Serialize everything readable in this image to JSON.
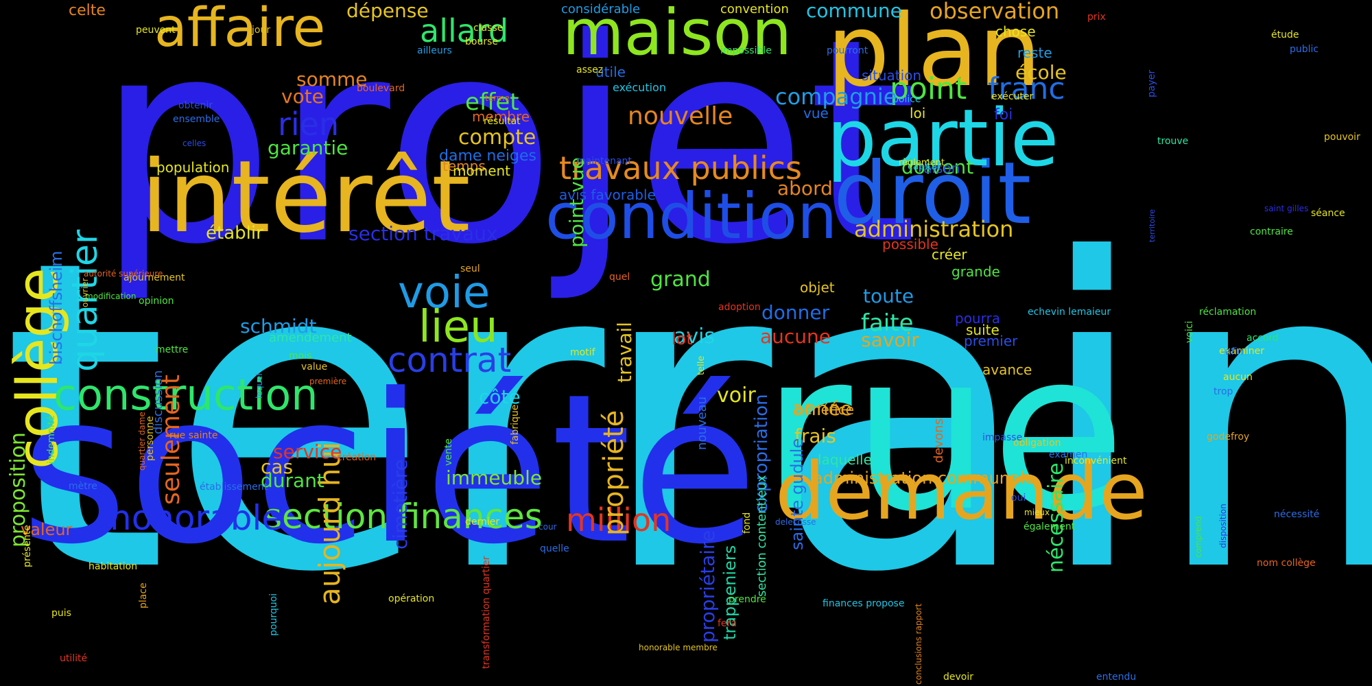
{
  "words": [
    {
      "text": "terrain",
      "color": "#1ec8e6"
    },
    {
      "text": "projet",
      "color": "#2a1fe6"
    },
    {
      "text": "société",
      "color": "#2230ec"
    },
    {
      "text": "rue",
      "color": "#1ee3d6"
    },
    {
      "text": "plan",
      "color": "#e6b51f"
    },
    {
      "text": "intérêt",
      "color": "#e6b51f"
    },
    {
      "text": "droit",
      "color": "#1f5ee6"
    },
    {
      "text": "partie",
      "color": "#1ed7e6"
    },
    {
      "text": "demande",
      "color": "#e6a51f"
    },
    {
      "text": "maison",
      "color": "#8ee61f"
    },
    {
      "text": "condition",
      "color": "#1f4ee6"
    },
    {
      "text": "collège",
      "color": "#e6e61f"
    },
    {
      "text": "affaire",
      "color": "#e6b51f"
    },
    {
      "text": "construction",
      "color": "#2ee66b"
    },
    {
      "text": "section finances",
      "color": "#5ee63f"
    },
    {
      "text": "honorable",
      "color": "#2230ec"
    },
    {
      "text": "travaux publics",
      "color": "#e68a1f"
    },
    {
      "text": "voie",
      "color": "#1f9be6"
    },
    {
      "text": "lieu",
      "color": "#8ee61f"
    },
    {
      "text": "contrat",
      "color": "#2a3ee6"
    },
    {
      "text": "quartier",
      "color": "#1fd6e6"
    },
    {
      "text": "aujourd hui",
      "color": "#e6b51f"
    },
    {
      "text": "million",
      "color": "#e6351f"
    },
    {
      "text": "allard",
      "color": "#2ee66b"
    },
    {
      "text": "point",
      "color": "#4ee63f"
    },
    {
      "text": "franc",
      "color": "#1f6ee6"
    },
    {
      "text": "compagnie",
      "color": "#1f9ee6"
    },
    {
      "text": "observation",
      "color": "#e6a51f"
    },
    {
      "text": "administration",
      "color": "#e6c51f"
    },
    {
      "text": "nouvelle",
      "color": "#e6851f"
    },
    {
      "text": "rien",
      "color": "#2a2ee6"
    },
    {
      "text": "effet",
      "color": "#4ee63f"
    },
    {
      "text": "compte",
      "color": "#e6c51f"
    },
    {
      "text": "propriété",
      "color": "#e6b51f"
    },
    {
      "text": "seulement",
      "color": "#e6651f"
    },
    {
      "text": "proposition",
      "color": "#7ee62f"
    },
    {
      "text": "nécessaire",
      "color": "#2ee66b"
    },
    {
      "text": "propriétaire",
      "color": "#2a3ee6"
    },
    {
      "text": "immeuble",
      "color": "#7ee62f"
    },
    {
      "text": "frais",
      "color": "#e6c51f"
    },
    {
      "text": "faite",
      "color": "#2ee6a5"
    },
    {
      "text": "grand",
      "color": "#4ee63f"
    },
    {
      "text": "avis",
      "color": "#1fd6e6"
    },
    {
      "text": "voir",
      "color": "#e6e61f"
    },
    {
      "text": "année",
      "color": "#e6a51f"
    },
    {
      "text": "cimetière",
      "color": "#2a3ee6"
    },
    {
      "text": "garantie",
      "color": "#4ee63f"
    },
    {
      "text": "somme",
      "color": "#e6851f"
    },
    {
      "text": "vote",
      "color": "#e6751f"
    },
    {
      "text": "école",
      "color": "#e6c51f"
    },
    {
      "text": "commune",
      "color": "#1fc6e6"
    },
    {
      "text": "dépense",
      "color": "#e6c51f"
    },
    {
      "text": "point vue",
      "color": "#4ee63f"
    },
    {
      "text": "toute",
      "color": "#1f9be6"
    },
    {
      "text": "savoir",
      "color": "#e6a51f"
    },
    {
      "text": "donner",
      "color": "#1f6ee6"
    },
    {
      "text": "aucune",
      "color": "#e6351f"
    },
    {
      "text": "service",
      "color": "#e6351f"
    },
    {
      "text": "durant",
      "color": "#4ee63f"
    },
    {
      "text": "cas",
      "color": "#e6c51f"
    },
    {
      "text": "côté",
      "color": "#1fd6e6"
    },
    {
      "text": "schmidt",
      "color": "#1f9ee6"
    },
    {
      "text": "abord",
      "color": "#e6851f"
    },
    {
      "text": "doivent",
      "color": "#4ee63f"
    },
    {
      "text": "travail",
      "color": "#e6c51f"
    },
    {
      "text": "expropriation",
      "color": "#2a6ee6"
    },
    {
      "text": "sainte gudule",
      "color": "#2a6ee6"
    },
    {
      "text": "trappeniers",
      "color": "#1fd6a6"
    },
    {
      "text": "bischoffsheim",
      "color": "#2a6ee6"
    },
    {
      "text": "dame neiges",
      "color": "#1f6ee6"
    },
    {
      "text": "section travaux",
      "color": "#2a2ee6"
    },
    {
      "text": "administration communale",
      "color": "#e6a51f"
    },
    {
      "text": "établir",
      "color": "#e6e61f"
    },
    {
      "text": "population",
      "color": "#e6e61f"
    },
    {
      "text": "temps",
      "color": "#e6851f"
    },
    {
      "text": "moment",
      "color": "#e6e61f"
    },
    {
      "text": "avis favorable",
      "color": "#1f5ee6"
    },
    {
      "text": "utile",
      "color": "#1f6ee6"
    },
    {
      "text": "lot",
      "color": "#e6351f"
    },
    {
      "text": "membre",
      "color": "#e6651f"
    },
    {
      "text": "chose",
      "color": "#e6e61f"
    },
    {
      "text": "considérable",
      "color": "#1f9ee6"
    },
    {
      "text": "celte",
      "color": "#e6851f"
    },
    {
      "text": "convention",
      "color": "#e6e61f"
    },
    {
      "text": "exécution",
      "color": "#1fc6e6"
    },
    {
      "text": "situation",
      "color": "#2a4ee6"
    },
    {
      "text": "loi",
      "color": "#e6e61f"
    },
    {
      "text": "vue",
      "color": "#1f6ee6"
    },
    {
      "text": "foi",
      "color": "#2a2ee6"
    },
    {
      "text": "raison",
      "color": "#2a4ee6"
    },
    {
      "text": "reste",
      "color": "#1f9ee6"
    },
    {
      "text": "amendement",
      "color": "#2ee6a5"
    },
    {
      "text": "objet",
      "color": "#e6c51f"
    },
    {
      "text": "pourra",
      "color": "#2a2ee6"
    },
    {
      "text": "suite",
      "color": "#e6e61f"
    },
    {
      "text": "premier",
      "color": "#2a4ee6"
    },
    {
      "text": "avance",
      "color": "#e6c51f"
    },
    {
      "text": "créer",
      "color": "#e6e61f"
    },
    {
      "text": "grande",
      "color": "#4ee63f"
    },
    {
      "text": "laquelle",
      "color": "#2ee6a5"
    },
    {
      "text": "bénéfice",
      "color": "#e6a51f"
    },
    {
      "text": "possible",
      "color": "#e6351f"
    },
    {
      "text": "valeur",
      "color": "#e6651f"
    },
    {
      "text": "nouveau",
      "color": "#2a6ee6"
    },
    {
      "text": "discussion",
      "color": "#2a6ee6"
    },
    {
      "text": "section contentieux",
      "color": "#2ee6a5"
    },
    {
      "text": "devons",
      "color": "#e6651f"
    },
    {
      "text": "jour",
      "color": "#e6c51f"
    },
    {
      "text": "peuvent",
      "color": "#e6e61f"
    },
    {
      "text": "classe",
      "color": "#e6e61f"
    },
    {
      "text": "bourse",
      "color": "#e6e61f"
    },
    {
      "text": "ailleurs",
      "color": "#1f9ee6"
    },
    {
      "text": "impossible",
      "color": "#2ee66b"
    },
    {
      "text": "pourront",
      "color": "#2a6ee6"
    },
    {
      "text": "prix",
      "color": "#e6351f"
    },
    {
      "text": "étude",
      "color": "#e6e61f"
    },
    {
      "text": "public",
      "color": "#2a6ee6"
    },
    {
      "text": "payer",
      "color": "#2a4ee6"
    },
    {
      "text": "assez",
      "color": "#e6e61f"
    },
    {
      "text": "boulevard",
      "color": "#e6651f"
    },
    {
      "text": "terme",
      "color": "#e6651f"
    },
    {
      "text": "obtenir",
      "color": "#2a4ee6"
    },
    {
      "text": "ensemble",
      "color": "#2a6ee6"
    },
    {
      "text": "celles",
      "color": "#2a4ee6"
    },
    {
      "text": "résultat",
      "color": "#e6e61f"
    },
    {
      "text": "exécuter",
      "color": "#e6e61f"
    },
    {
      "text": "police",
      "color": "#1fc6e6"
    },
    {
      "text": "trouve",
      "color": "#2ee6a5"
    },
    {
      "text": "pouvoir",
      "color": "#e6c51f"
    },
    {
      "text": "capital",
      "color": "#1fc6e6"
    },
    {
      "text": "règlement",
      "color": "#e6e61f"
    },
    {
      "text": "territoire",
      "color": "#2a4ee6"
    },
    {
      "text": "maintenant",
      "color": "#2a4ee6"
    },
    {
      "text": "saint gilles",
      "color": "#2a2ee6"
    },
    {
      "text": "séance",
      "color": "#e6e61f"
    },
    {
      "text": "contraire",
      "color": "#4ee63f"
    },
    {
      "text": "seul",
      "color": "#e6a51f"
    },
    {
      "text": "quel",
      "color": "#e6651f"
    },
    {
      "text": "ajournement",
      "color": "#e6c51f"
    },
    {
      "text": "opinion",
      "color": "#4ee63f"
    },
    {
      "text": "adoption",
      "color": "#e6351f"
    },
    {
      "text": "echevin lemaieur",
      "color": "#1fc6e6"
    },
    {
      "text": "réclamation",
      "color": "#4ee63f"
    },
    {
      "text": "voici",
      "color": "#4ee63f"
    },
    {
      "text": "accord",
      "color": "#2ee66b"
    },
    {
      "text": "examiner",
      "color": "#e6e61f"
    },
    {
      "text": "afin",
      "color": "#2a6ee6"
    },
    {
      "text": "aucun",
      "color": "#e6e61f"
    },
    {
      "text": "trop",
      "color": "#2a6ee6"
    },
    {
      "text": "godefroy",
      "color": "#e6a51f"
    },
    {
      "text": "obligation",
      "color": "#e6c51f"
    },
    {
      "text": "impasse",
      "color": "#2a4ee6"
    },
    {
      "text": "examen",
      "color": "#2a6ee6"
    },
    {
      "text": "inconvénient",
      "color": "#e6e61f"
    },
    {
      "text": "oui",
      "color": "#2a4ee6"
    },
    {
      "text": "mieux",
      "color": "#e6e61f"
    },
    {
      "text": "également",
      "color": "#4ee63f"
    },
    {
      "text": "telle",
      "color": "#e6e61f"
    },
    {
      "text": "mettre",
      "color": "#4ee63f"
    },
    {
      "text": "mois",
      "color": "#4ee63f"
    },
    {
      "text": "value",
      "color": "#e6c51f"
    },
    {
      "text": "motif",
      "color": "#e6e61f"
    },
    {
      "text": "rue sainte",
      "color": "#e6851f"
    },
    {
      "text": "création",
      "color": "#e6651f"
    },
    {
      "text": "vente",
      "color": "#4ee63f"
    },
    {
      "text": "fabrique",
      "color": "#e6c51f"
    },
    {
      "text": "personne",
      "color": "#e6c51f"
    },
    {
      "text": "indemnité",
      "color": "#4ee63f"
    },
    {
      "text": "lequel",
      "color": "#1f9ee6"
    },
    {
      "text": "première",
      "color": "#e6651f"
    },
    {
      "text": "quartier dame",
      "color": "#e6651f"
    },
    {
      "text": "autorité supérieure",
      "color": "#e6651f"
    },
    {
      "text": "modification",
      "color": "#4ee63f"
    },
    {
      "text": "ouvrier",
      "color": "#e6c51f"
    },
    {
      "text": "établissement",
      "color": "#2a6ee6"
    },
    {
      "text": "mètre",
      "color": "#2a6ee6"
    },
    {
      "text": "présente",
      "color": "#e6e61f"
    },
    {
      "text": "habitation",
      "color": "#e6e61f"
    },
    {
      "text": "puis",
      "color": "#e6e61f"
    },
    {
      "text": "utilité",
      "color": "#e6351f"
    },
    {
      "text": "place",
      "color": "#e6a51f"
    },
    {
      "text": "pourquoi",
      "color": "#1fc6e6"
    },
    {
      "text": "dernier",
      "color": "#e6e61f"
    },
    {
      "text": "transformation quartier",
      "color": "#e6351f"
    },
    {
      "text": "opération",
      "color": "#e6e61f"
    },
    {
      "text": "cour",
      "color": "#2a6ee6"
    },
    {
      "text": "quelle",
      "color": "#2a6ee6"
    },
    {
      "text": "fond",
      "color": "#e6e61f"
    },
    {
      "text": "delecosse",
      "color": "#2a6ee6"
    },
    {
      "text": "prendre",
      "color": "#4ee63f"
    },
    {
      "text": "fera",
      "color": "#e6351f"
    },
    {
      "text": "finances propose",
      "color": "#1fc6e6"
    },
    {
      "text": "honorable membre",
      "color": "#e6c51f"
    },
    {
      "text": "conclusions rapport",
      "color": "#e6851f"
    },
    {
      "text": "devoir",
      "color": "#e6e61f"
    },
    {
      "text": "entendu",
      "color": "#2a6ee6"
    },
    {
      "text": "nécessité",
      "color": "#2a6ee6"
    },
    {
      "text": "disposition",
      "color": "#2a2ee6"
    },
    {
      "text": "comprend",
      "color": "#4ee63f"
    },
    {
      "text": "nom collège",
      "color": "#e6651f"
    }
  ]
}
